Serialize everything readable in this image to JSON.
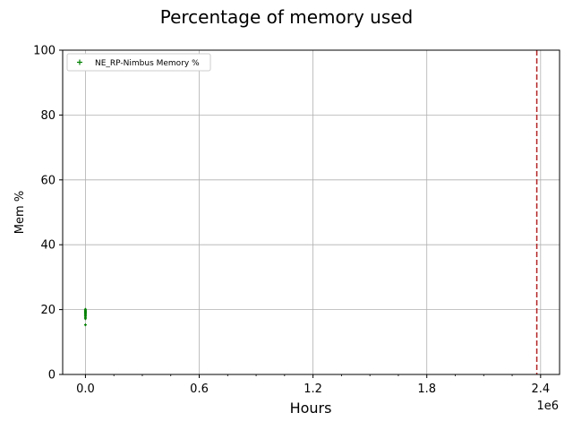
{
  "chart_data": {
    "type": "scatter",
    "title": "Percentage of memory used",
    "xlabel": "Hours",
    "ylabel": "Mem %",
    "x_offset_label": "1e6",
    "xlim": [
      -120000,
      2500000
    ],
    "ylim": [
      0,
      100
    ],
    "x_ticks": [
      0,
      600000,
      1200000,
      1800000,
      2400000
    ],
    "x_tick_labels": [
      "0.0",
      "0.6",
      "1.2",
      "1.8",
      "2.4"
    ],
    "x_minor_step": 150000,
    "y_ticks": [
      0,
      20,
      40,
      60,
      80,
      100
    ],
    "y_tick_labels": [
      "0",
      "20",
      "40",
      "60",
      "80",
      "100"
    ],
    "grid": true,
    "legend_position": "top-left",
    "series": [
      {
        "name": "NE_RP-Nimbus Memory %",
        "color": "#008000",
        "marker": "plus",
        "points": [
          [
            0,
            15.3
          ],
          [
            0,
            17.2
          ],
          [
            0,
            17.6
          ],
          [
            0,
            18.0
          ],
          [
            0,
            18.3
          ],
          [
            0,
            18.6
          ],
          [
            0,
            18.9
          ],
          [
            0,
            19.2
          ],
          [
            0,
            19.5
          ],
          [
            0,
            19.8
          ],
          [
            0,
            20.1
          ]
        ]
      }
    ],
    "vertical_line": {
      "x": 2380000,
      "color": "#b22222",
      "style": "dashed"
    }
  }
}
